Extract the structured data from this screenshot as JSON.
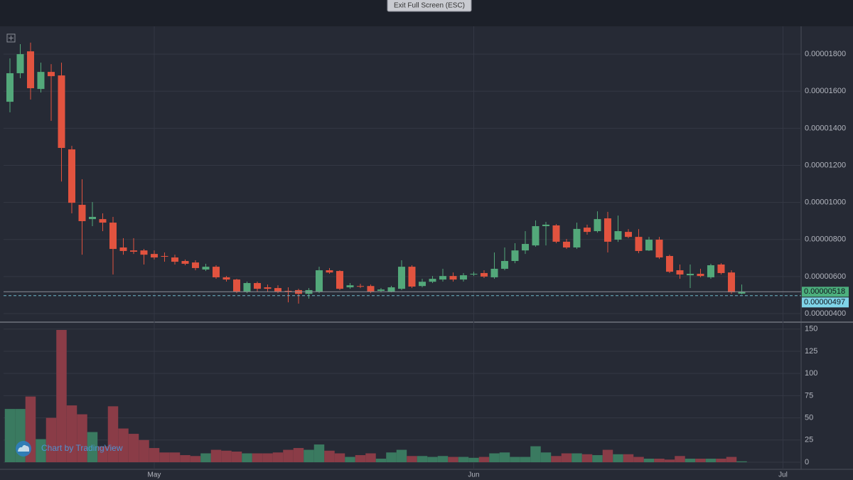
{
  "toolbar": {
    "button": "Exit Full Screen (ESC)"
  },
  "chart_data": {
    "type": "candlestick",
    "watermark": "Chart by TradingView",
    "up_color": "#53a87a",
    "down_color": "#e2533f",
    "volume_up_color": "#3a7a60",
    "volume_down_color": "#8a3c47",
    "categories": [
      null,
      null,
      null,
      null,
      null,
      null,
      null,
      null,
      null,
      null,
      null,
      null,
      null,
      null,
      null,
      null,
      null,
      null,
      null,
      null,
      null,
      null,
      null,
      null,
      null,
      null,
      null,
      null,
      null,
      null,
      null,
      null,
      null,
      null,
      null,
      null,
      null,
      null,
      null,
      null,
      null,
      null,
      null,
      null,
      null,
      null,
      null,
      null,
      null,
      null,
      null,
      null,
      null,
      null,
      null,
      null,
      null,
      null,
      null,
      null,
      null,
      null,
      null,
      null,
      null,
      null,
      null,
      null,
      null,
      null,
      null,
      null
    ],
    "xlim": [
      -0.62,
      76.76
    ],
    "xticks": [
      {
        "value": 14,
        "label": "May"
      },
      {
        "value": 45,
        "label": "Jun"
      },
      {
        "value": 75,
        "label": "Jul"
      }
    ],
    "open": [
      1.543e-05,
      1.697e-05,
      1.815e-05,
      1.612e-05,
      1.704e-05,
      1.685e-05,
      1.286e-05,
      9.87e-06,
      9.1e-06,
      9.1e-06,
      8.91e-06,
      7.57e-06,
      7.41e-06,
      7.41e-06,
      7.22e-06,
      7.11e-06,
      7.03e-06,
      6.84e-06,
      6.76e-06,
      6.38e-06,
      6.53e-06,
      5.96e-06,
      5.84e-06,
      5.19e-06,
      5.65e-06,
      5.42e-06,
      5.38e-06,
      5.23e-06,
      5.27e-06,
      5.07e-06,
      5.19e-06,
      6.34e-06,
      6.3e-06,
      5.42e-06,
      5.49e-06,
      5.49e-06,
      5.23e-06,
      5.19e-06,
      5.34e-06,
      6.53e-06,
      5.49e-06,
      5.72e-06,
      5.84e-06,
      6.03e-06,
      5.84e-06,
      6.11e-06,
      6.19e-06,
      5.96e-06,
      6.42e-06,
      6.84e-06,
      7.41e-06,
      7.68e-06,
      8.72e-06,
      8.76e-06,
      7.88e-06,
      7.57e-06,
      8.64e-06,
      8.45e-06,
      9.14e-06,
      7.99e-06,
      8.41e-06,
      8.14e-06,
      7.41e-06,
      7.99e-06,
      7.11e-06,
      6.34e-06,
      6.07e-06,
      6.15e-06,
      5.96e-06,
      6.65e-06,
      6.22e-06,
      5.08e-06
    ],
    "high": [
      1.777e-05,
      1.854e-05,
      1.862e-05,
      1.754e-05,
      1.746e-05,
      1.754e-05,
      1.305e-05,
      1.125e-05,
      1.002e-05,
      9.41e-06,
      9.22e-06,
      8.07e-06,
      8.07e-06,
      7.49e-06,
      7.41e-06,
      7.3e-06,
      7.18e-06,
      6.92e-06,
      6.88e-06,
      6.69e-06,
      6.61e-06,
      6.03e-06,
      5.88e-06,
      5.73e-06,
      5.73e-06,
      5.57e-06,
      5.53e-06,
      5.42e-06,
      5.34e-06,
      5.38e-06,
      6.53e-06,
      6.46e-06,
      6.34e-06,
      5.65e-06,
      5.61e-06,
      5.57e-06,
      5.38e-06,
      5.5e-06,
      6.88e-06,
      6.61e-06,
      5.88e-06,
      6.03e-06,
      6.42e-06,
      6.22e-06,
      6.19e-06,
      6.26e-06,
      6.34e-06,
      7.3e-06,
      7.57e-06,
      7.8e-06,
      8.45e-06,
      9.03e-06,
      8.95e-06,
      8.83e-06,
      8.03e-06,
      8.91e-06,
      8.8e-06,
      9.52e-06,
      9.49e-06,
      9.29e-06,
      8.56e-06,
      8.56e-06,
      8.14e-06,
      8.14e-06,
      7.18e-06,
      6.65e-06,
      6.65e-06,
      6.42e-06,
      6.69e-06,
      6.72e-06,
      6.34e-06,
      5.57e-06
    ],
    "low": [
      1.486e-05,
      1.67e-05,
      1.555e-05,
      1.593e-05,
      1.44e-05,
      1.113e-05,
      9.41e-06,
      7.18e-06,
      8.72e-06,
      8.45e-06,
      6.11e-06,
      7.18e-06,
      7.22e-06,
      6.65e-06,
      6.92e-06,
      6.8e-06,
      6.65e-06,
      6.61e-06,
      6.34e-06,
      6.3e-06,
      5.88e-06,
      5.73e-06,
      5.11e-06,
      5.11e-06,
      5.19e-06,
      5.19e-06,
      5.11e-06,
      4.61e-06,
      4.54e-06,
      4.81e-06,
      5.11e-06,
      6.15e-06,
      5.27e-06,
      5.34e-06,
      5.38e-06,
      5.11e-06,
      5.15e-06,
      5.15e-06,
      5.27e-06,
      5.38e-06,
      5.42e-06,
      5.65e-06,
      5.73e-06,
      5.73e-06,
      5.73e-06,
      6.03e-06,
      5.92e-06,
      5.88e-06,
      6.34e-06,
      6.72e-06,
      7.22e-06,
      7.61e-06,
      7.68e-06,
      7.8e-06,
      7.49e-06,
      7.49e-06,
      8.26e-06,
      8.37e-06,
      7.3e-06,
      7.87e-06,
      8.07e-06,
      7.26e-06,
      7.38e-06,
      6.95e-06,
      6.19e-06,
      5.88e-06,
      5.38e-06,
      5.96e-06,
      5.88e-06,
      6.11e-06,
      5.07e-06,
      5.04e-06
    ],
    "close": [
      1.697e-05,
      1.8e-05,
      1.616e-05,
      1.704e-05,
      1.681e-05,
      1.294e-05,
      9.98e-06,
      8.99e-06,
      9.22e-06,
      8.91e-06,
      7.49e-06,
      7.38e-06,
      7.34e-06,
      7.18e-06,
      7.03e-06,
      7.07e-06,
      6.8e-06,
      6.69e-06,
      6.46e-06,
      6.53e-06,
      5.96e-06,
      5.84e-06,
      5.19e-06,
      5.65e-06,
      5.34e-06,
      5.34e-06,
      5.19e-06,
      5.19e-06,
      5.07e-06,
      5.27e-06,
      6.34e-06,
      6.22e-06,
      5.34e-06,
      5.53e-06,
      5.46e-06,
      5.19e-06,
      5.3e-06,
      5.42e-06,
      6.53e-06,
      5.46e-06,
      5.72e-06,
      5.88e-06,
      6.03e-06,
      5.84e-06,
      6.07e-06,
      6.15e-06,
      6e-06,
      6.42e-06,
      6.84e-06,
      7.41e-06,
      7.76e-06,
      8.72e-06,
      8.8e-06,
      7.88e-06,
      7.57e-06,
      8.57e-06,
      8.41e-06,
      9.1e-06,
      7.88e-06,
      8.45e-06,
      8.14e-06,
      7.38e-06,
      7.99e-06,
      7.03e-06,
      6.26e-06,
      6.11e-06,
      6.15e-06,
      6.03e-06,
      6.61e-06,
      6.19e-06,
      5.15e-06,
      5.18e-06
    ],
    "ylim": [
      3.58e-06,
      1.95e-05
    ],
    "yticks": [
      {
        "value": 4e-06,
        "label": "0.00000400"
      },
      {
        "value": 6e-06,
        "label": "0.00000600"
      },
      {
        "value": 8e-06,
        "label": "0.00000800"
      },
      {
        "value": 1e-05,
        "label": "0.00001000"
      },
      {
        "value": 1.2e-05,
        "label": "0.00001200"
      },
      {
        "value": 1.4e-05,
        "label": "0.00001400"
      },
      {
        "value": 1.6e-05,
        "label": "0.00001600"
      },
      {
        "value": 1.8e-05,
        "label": "0.00001800"
      }
    ],
    "price_lines": [
      {
        "value": 5.18e-06,
        "label": "0.00000518",
        "color": "#4caf7d"
      },
      {
        "value": 4.97e-06,
        "label": "0.00000497",
        "color": "#7fd4e8"
      }
    ],
    "volume": [
      60,
      60,
      74,
      26,
      50,
      149,
      64,
      54,
      34,
      18,
      63,
      38,
      32,
      25,
      16,
      11,
      11,
      8,
      7,
      10,
      14,
      13,
      12,
      10,
      10,
      10,
      11,
      14,
      16,
      14,
      20,
      13,
      10,
      6,
      8,
      10,
      4,
      11,
      14,
      7,
      7,
      6,
      7,
      6,
      6,
      5,
      6,
      10,
      11,
      6,
      6,
      18,
      11,
      7,
      10,
      10,
      9,
      8,
      14,
      9,
      9,
      6,
      4,
      4,
      3,
      7,
      4,
      4,
      4,
      4,
      6,
      1
    ],
    "y2lim": [
      -8,
      157
    ],
    "y2ticks": [
      0,
      25,
      50,
      75,
      100,
      125,
      150
    ],
    "grid": true
  }
}
